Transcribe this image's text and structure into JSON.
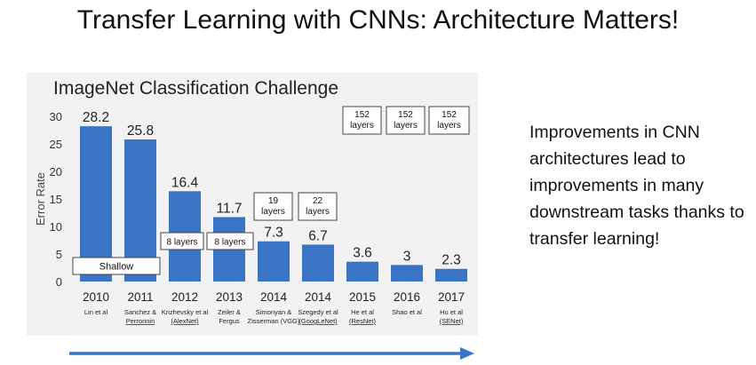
{
  "slide": {
    "title": "Transfer Learning with CNNs: Architecture Matters!",
    "side_text": "Improvements in CNN architectures lead to improvements in many downstream tasks thanks to transfer learning!"
  },
  "chart_data": {
    "type": "bar",
    "title": "ImageNet Classification Challenge",
    "ylabel": "Error Rate",
    "xlabel": "",
    "ylim": [
      0,
      30
    ],
    "yticks": [
      0,
      5,
      10,
      15,
      20,
      25,
      30
    ],
    "grid": false,
    "bar_color": "#3a74c4",
    "categories": [
      "2010",
      "2011",
      "2012",
      "2013",
      "2014",
      "2014",
      "2015",
      "2016",
      "2017"
    ],
    "authors": [
      "Lin et al",
      "Sanchez & Perronnin",
      "Krizhevsky et al (AlexNet)",
      "Zeiler & Fergus",
      "Simonyan & Zisserman (VGG)",
      "Szegedy et al (GoogLeNet)",
      "He et al (ResNet)",
      "Shao et al",
      "Hu et al (SENet)"
    ],
    "values": [
      28.2,
      25.8,
      16.4,
      11.7,
      7.3,
      6.7,
      3.6,
      3,
      2.3
    ],
    "value_labels": [
      "28.2",
      "25.8",
      "16.4",
      "11.7",
      "7.3",
      "6.7",
      "3.6",
      "3",
      "2.3"
    ],
    "annotations": [
      "Shallow",
      "8 layers",
      "8 layers",
      "19 layers",
      "22 layers",
      "152 layers",
      "152 layers",
      "152 layers"
    ]
  }
}
